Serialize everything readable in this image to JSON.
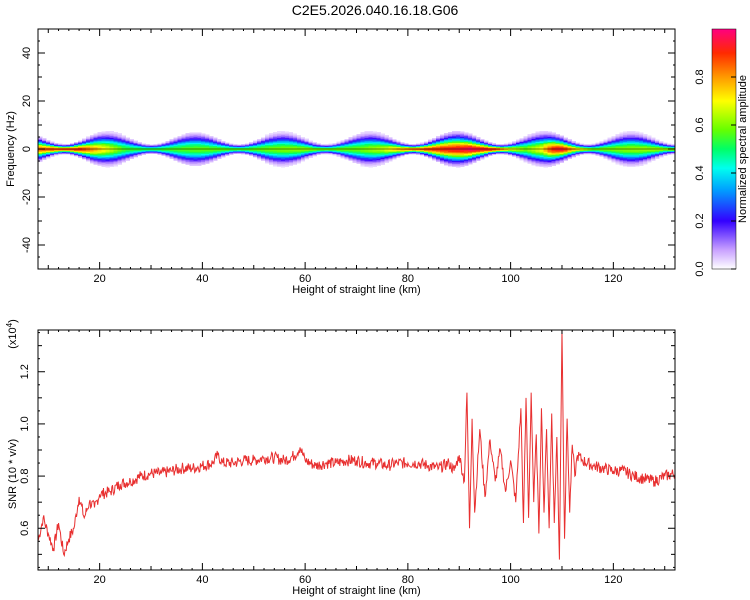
{
  "title": "C2E5.2026.040.16.18.G06",
  "chart_data": [
    {
      "type": "heatmap",
      "xlabel": "Height of straight line (km)",
      "ylabel": "Frequency (Hz)",
      "xlim": [
        8,
        132
      ],
      "ylim": [
        -50,
        50
      ],
      "xticks": [
        20,
        40,
        60,
        80,
        100,
        120
      ],
      "yticks": [
        -40,
        -20,
        0,
        20,
        40
      ],
      "colorbar": {
        "label": "Normalized spectral amplitude",
        "range": [
          0,
          1
        ],
        "ticks": [
          "0.0",
          "0.2",
          "0.4",
          "0.6",
          "0.8"
        ],
        "tick_values": [
          0,
          0.2,
          0.4,
          0.6,
          0.8
        ],
        "placement": "right"
      },
      "band_center_hz": 0,
      "band_halfwidth_hz": 3,
      "ridge_amplitude": {
        "x": [
          8,
          12,
          16,
          20,
          25,
          30,
          40,
          50,
          60,
          70,
          75,
          80,
          85,
          88,
          91,
          92,
          94,
          97,
          100,
          103,
          106,
          108,
          110,
          112,
          116,
          120,
          125,
          132
        ],
        "values": [
          0.85,
          0.9,
          0.92,
          0.75,
          0.55,
          0.55,
          0.58,
          0.58,
          0.62,
          0.58,
          0.65,
          0.85,
          0.9,
          0.92,
          0.95,
          0.98,
          0.95,
          0.92,
          0.7,
          0.6,
          0.7,
          0.9,
          0.95,
          0.8,
          0.6,
          0.6,
          0.62,
          0.65
        ]
      }
    },
    {
      "type": "line",
      "xlabel": "Height of straight line (km)",
      "ylabel": "SNR (10 * v/v)",
      "y_multiplier": "(x10",
      "y_multiplier_exp": "4",
      "xlim": [
        8,
        132
      ],
      "ylim": [
        0.44,
        1.36
      ],
      "xticks": [
        20,
        40,
        60,
        80,
        100,
        120
      ],
      "yticks": [
        0.6,
        0.8,
        1.0,
        1.2
      ],
      "ytick_labels": [
        "0.6",
        "0.8",
        "1.0",
        "1.2"
      ],
      "color": "#e83030",
      "series": [
        {
          "x": [
            8,
            9,
            10,
            11,
            12,
            13,
            14,
            15,
            16,
            17,
            18,
            19,
            20,
            22,
            24,
            26,
            28,
            30,
            32,
            34,
            36,
            38,
            40,
            42,
            43,
            44,
            46,
            48,
            50,
            52,
            54,
            56,
            58,
            59,
            60,
            62,
            64,
            66,
            68,
            70,
            72,
            74,
            76,
            78,
            80,
            82,
            84,
            86,
            88,
            89,
            90,
            91,
            91.5,
            92,
            92.5,
            93,
            94,
            95,
            96,
            97,
            98,
            99,
            100,
            101,
            102,
            102.5,
            103,
            103.5,
            104,
            104.5,
            105,
            105.5,
            106,
            106.5,
            107,
            107.5,
            108,
            108.5,
            109,
            109.5,
            110,
            110.5,
            111,
            111.5,
            112,
            112.5,
            113,
            114,
            116,
            118,
            120,
            122,
            124,
            126,
            128,
            130,
            132
          ],
          "values": [
            0.55,
            0.64,
            0.58,
            0.52,
            0.62,
            0.5,
            0.56,
            0.6,
            0.72,
            0.64,
            0.7,
            0.68,
            0.73,
            0.74,
            0.77,
            0.78,
            0.8,
            0.81,
            0.81,
            0.82,
            0.83,
            0.83,
            0.84,
            0.85,
            0.88,
            0.85,
            0.85,
            0.86,
            0.86,
            0.87,
            0.87,
            0.86,
            0.88,
            0.91,
            0.86,
            0.84,
            0.85,
            0.85,
            0.86,
            0.86,
            0.85,
            0.85,
            0.84,
            0.85,
            0.85,
            0.85,
            0.84,
            0.83,
            0.85,
            0.82,
            0.88,
            0.78,
            1.12,
            0.6,
            1.02,
            0.66,
            0.98,
            0.72,
            0.94,
            0.78,
            0.9,
            0.74,
            0.86,
            0.7,
            1.06,
            0.62,
            1.1,
            0.64,
            1.12,
            0.7,
            0.96,
            0.58,
            1.06,
            0.66,
            0.98,
            0.6,
            1.04,
            0.62,
            0.95,
            0.48,
            1.36,
            0.56,
            1.02,
            0.66,
            0.92,
            0.8,
            0.88,
            0.86,
            0.84,
            0.83,
            0.82,
            0.82,
            0.8,
            0.79,
            0.78,
            0.8,
            0.81
          ]
        }
      ]
    }
  ]
}
